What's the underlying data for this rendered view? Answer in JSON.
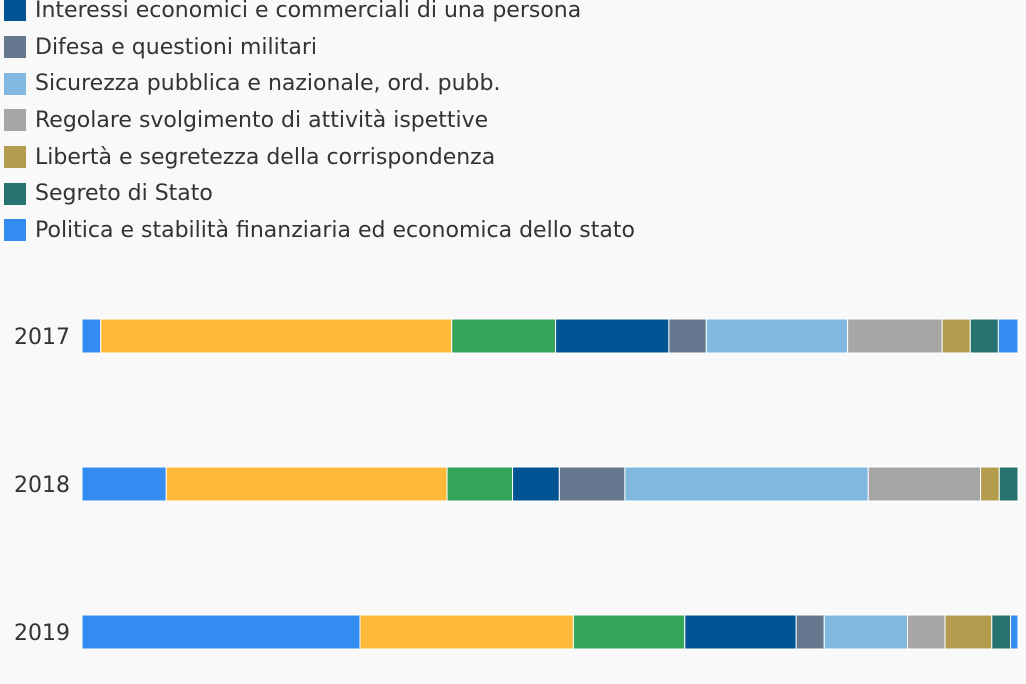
{
  "chart_data": {
    "type": "bar",
    "orientation": "horizontal",
    "stacked": "percent",
    "title": "",
    "xlabel": "",
    "ylabel": "",
    "categories": [
      "2017",
      "2018",
      "2019"
    ],
    "legend_position": "top-left",
    "grid": false,
    "series": [
      {
        "name": "Politica e stabilità finanziaria ed economica dello stato",
        "color": "#338cf0",
        "values": [
          2.0,
          9.0,
          29.7
        ],
        "legend_index": 7
      },
      {
        "name": "",
        "color": "#ffb838",
        "values": [
          37.5,
          30.0,
          22.8
        ]
      },
      {
        "name": "",
        "color": "#33a65a",
        "values": [
          11.1,
          7.0,
          11.9
        ]
      },
      {
        "name": "Interessi economici e commerciali di una persona",
        "color": "#005494",
        "values": [
          12.1,
          5.0,
          11.9
        ],
        "legend_index": 1
      },
      {
        "name": "Difesa e questioni militari",
        "color": "#66788f",
        "values": [
          4.0,
          7.0,
          3.0
        ],
        "legend_index": 2
      },
      {
        "name": "Sicurezza pubblica e nazionale, ord. pubb.",
        "color": "#80b8e0",
        "values": [
          15.1,
          26.0,
          8.9
        ],
        "legend_index": 3
      },
      {
        "name": "Regolare svolgimento di attività ispettive",
        "color": "#a6a6a6",
        "values": [
          10.1,
          12.0,
          4.0
        ],
        "legend_index": 4
      },
      {
        "name": "Libertà e segretezza della corrispondenza",
        "color": "#b39c4d",
        "values": [
          3.0,
          2.0,
          5.0
        ],
        "legend_index": 5
      },
      {
        "name": "Segreto di Stato",
        "color": "#267370",
        "values": [
          3.0,
          2.0,
          2.0
        ],
        "legend_index": 6
      },
      {
        "name": "",
        "color": "#338cf0",
        "values": [
          2.1,
          0.0,
          0.8
        ]
      }
    ],
    "legend": [
      {
        "label": "Interessi economici e commerciali di una persona",
        "color": "#005494"
      },
      {
        "label": "Difesa e questioni militari",
        "color": "#66788f"
      },
      {
        "label": "Sicurezza pubblica e nazionale, ord. pubb.",
        "color": "#80b8e0"
      },
      {
        "label": "Regolare svolgimento di attività ispettive",
        "color": "#a6a6a6"
      },
      {
        "label": "Libertà e segretezza della corrispondenza",
        "color": "#b39c4d"
      },
      {
        "label": "Segreto di Stato",
        "color": "#267370"
      },
      {
        "label": "Politica e stabilità finanziaria ed economica dello stato",
        "color": "#338cf0"
      }
    ]
  }
}
